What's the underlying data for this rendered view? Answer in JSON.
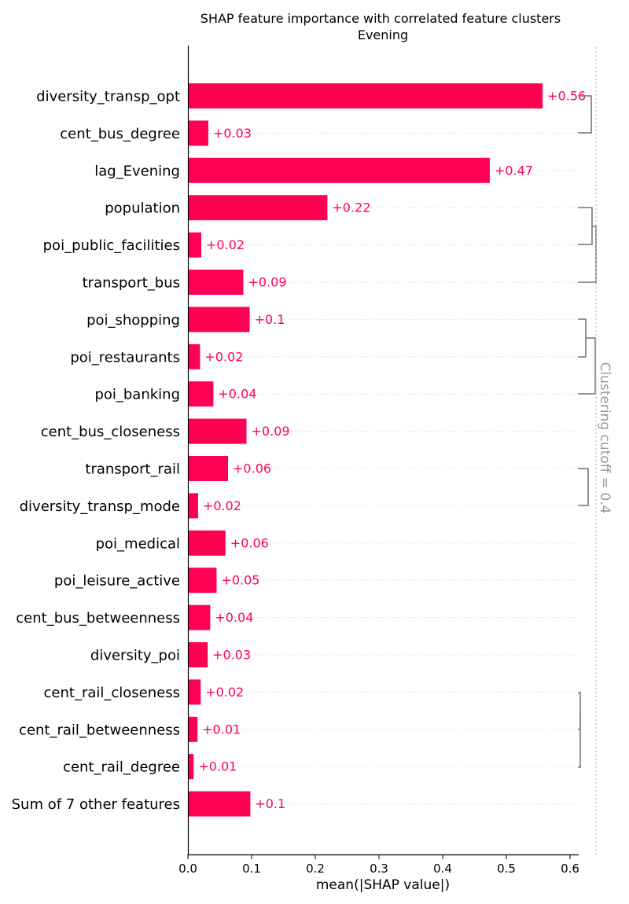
{
  "chart_data": {
    "type": "bar",
    "orientation": "horizontal",
    "title": "SHAP feature importance with correlated feature clusters",
    "subtitle": "Evening",
    "xlabel": "mean(|SHAP value|)",
    "xlim": [
      0,
      0.61
    ],
    "xticks": [
      "0.0",
      "0.1",
      "0.2",
      "0.3",
      "0.4",
      "0.5",
      "0.6"
    ],
    "categories": [
      "diversity_transp_opt",
      "cent_bus_degree",
      "lag_Evening",
      "population",
      "poi_public_facilities",
      "transport_bus",
      "poi_shopping",
      "poi_restaurants",
      "poi_banking",
      "cent_bus_closeness",
      "transport_rail",
      "diversity_transp_mode",
      "poi_medical",
      "poi_leisure_active",
      "cent_bus_betweenness",
      "diversity_poi",
      "cent_rail_closeness",
      "cent_rail_betweenness",
      "cent_rail_degree",
      "Sum of 7 other features"
    ],
    "values": [
      0.557,
      0.032,
      0.474,
      0.219,
      0.021,
      0.087,
      0.097,
      0.019,
      0.04,
      0.092,
      0.063,
      0.016,
      0.059,
      0.045,
      0.035,
      0.031,
      0.02,
      0.015,
      0.009,
      0.098
    ],
    "value_labels": [
      "+0.56",
      "+0.03",
      "+0.47",
      "+0.22",
      "+0.02",
      "+0.09",
      "+0.1",
      "+0.02",
      "+0.04",
      "+0.09",
      "+0.06",
      "+0.02",
      "+0.06",
      "+0.05",
      "+0.04",
      "+0.03",
      "+0.02",
      "+0.01",
      "+0.01",
      "+0.1"
    ],
    "cutoff_label": "Clustering cutoff = 0.4",
    "grid": "dotted horizontal row lines",
    "colors": {
      "bar": "#ff0052",
      "label": "#ff0052",
      "dendrogram": "#888888",
      "cutoff": "#bbbbbb"
    }
  }
}
